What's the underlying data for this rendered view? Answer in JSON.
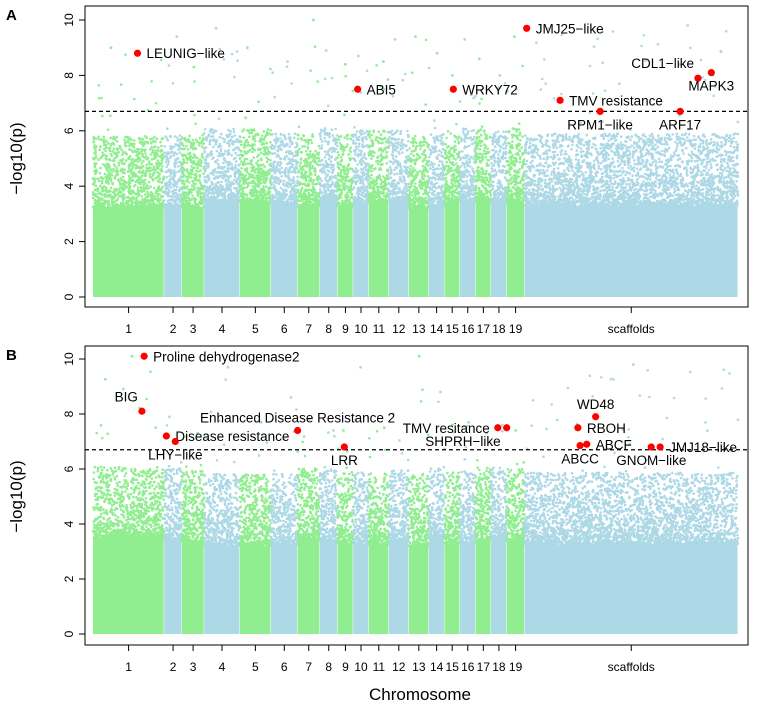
{
  "figure": {
    "x_title": "Chromosome",
    "colors": {
      "green": "#90ee90",
      "blue": "#add8e6",
      "hit": "#ff0000",
      "threshold": "#000000"
    }
  },
  "chart_data": [
    {
      "type": "scatter",
      "subtype": "manhattan",
      "panel": "A",
      "ylabel": "−log10(p)",
      "xlabel": "Chromosome",
      "ylim": [
        0,
        10
      ],
      "yticks": [
        "0",
        "2",
        "4",
        "6",
        "8",
        "10"
      ],
      "threshold": 6.7,
      "segments": [
        {
          "label": "1",
          "start": 0.0,
          "end": 1.6,
          "color": "green",
          "peak": 9.0
        },
        {
          "label": "2",
          "start": 1.6,
          "end": 2.0,
          "color": "blue",
          "peak": 9.4
        },
        {
          "label": "3",
          "start": 2.0,
          "end": 2.5,
          "color": "green",
          "peak": 8.3
        },
        {
          "label": "4",
          "start": 2.5,
          "end": 3.3,
          "color": "blue",
          "peak": 9.7
        },
        {
          "label": "5",
          "start": 3.3,
          "end": 4.0,
          "color": "green",
          "peak": 9.0
        },
        {
          "label": "6",
          "start": 4.0,
          "end": 4.6,
          "color": "blue",
          "peak": 8.5
        },
        {
          "label": "7",
          "start": 4.6,
          "end": 5.1,
          "color": "green",
          "peak": 10.0
        },
        {
          "label": "8",
          "start": 5.1,
          "end": 5.5,
          "color": "blue",
          "peak": 8.9
        },
        {
          "label": "9",
          "start": 5.5,
          "end": 5.85,
          "color": "green",
          "peak": 8.4
        },
        {
          "label": "10",
          "start": 5.85,
          "end": 6.2,
          "color": "blue",
          "peak": 8.7
        },
        {
          "label": "11",
          "start": 6.2,
          "end": 6.65,
          "color": "green",
          "peak": 8.5
        },
        {
          "label": "12",
          "start": 6.65,
          "end": 7.1,
          "color": "blue",
          "peak": 9.3
        },
        {
          "label": "13",
          "start": 7.1,
          "end": 7.55,
          "color": "green",
          "peak": 9.4
        },
        {
          "label": "14",
          "start": 7.55,
          "end": 7.9,
          "color": "blue",
          "peak": 8.8
        },
        {
          "label": "15",
          "start": 7.9,
          "end": 8.25,
          "color": "green",
          "peak": 8.0
        },
        {
          "label": "16",
          "start": 8.25,
          "end": 8.6,
          "color": "blue",
          "peak": 9.3
        },
        {
          "label": "17",
          "start": 8.6,
          "end": 8.95,
          "color": "green",
          "peak": 8.6
        },
        {
          "label": "18",
          "start": 8.95,
          "end": 9.3,
          "color": "blue",
          "peak": 8.0
        },
        {
          "label": "19",
          "start": 9.3,
          "end": 9.7,
          "color": "green",
          "peak": 9.4
        },
        {
          "label": "scaffolds",
          "start": 9.7,
          "end": 14.5,
          "color": "blue",
          "peak": 9.8
        }
      ],
      "hits": [
        {
          "gene": "LEUNIG−like",
          "x": 1.0,
          "y": 8.8,
          "label_side": "right"
        },
        {
          "gene": "ABI5",
          "x": 5.95,
          "y": 7.5,
          "label_side": "right"
        },
        {
          "gene": "WRKY72",
          "x": 8.1,
          "y": 7.5,
          "label_side": "right"
        },
        {
          "gene": "JMJ25−like",
          "x": 9.75,
          "y": 9.7,
          "label_side": "right"
        },
        {
          "gene": "TMV resistance",
          "x": 10.5,
          "y": 7.1,
          "label_side": "right"
        },
        {
          "gene": "RPM1−like",
          "x": 11.4,
          "y": 6.7,
          "label_side": "below"
        },
        {
          "gene": "CDL1−like",
          "x": 13.6,
          "y": 7.9,
          "label_side": "above-left"
        },
        {
          "gene": "MAPK3",
          "x": 13.9,
          "y": 8.1,
          "label_side": "below"
        },
        {
          "gene": "ARF17",
          "x": 13.2,
          "y": 6.7,
          "label_side": "below"
        }
      ]
    },
    {
      "type": "scatter",
      "subtype": "manhattan",
      "panel": "B",
      "ylabel": "−log10(p)",
      "xlabel": "Chromosome",
      "ylim": [
        0,
        10
      ],
      "yticks": [
        "0",
        "2",
        "4",
        "6",
        "8",
        "10"
      ],
      "threshold": 6.7,
      "segments": [
        {
          "label": "1",
          "start": 0.0,
          "end": 1.6,
          "color": "green",
          "peak": 10.1
        },
        {
          "label": "2",
          "start": 1.6,
          "end": 2.0,
          "color": "blue",
          "peak": 7.9
        },
        {
          "label": "3",
          "start": 2.0,
          "end": 2.5,
          "color": "green",
          "peak": 7.3
        },
        {
          "label": "4",
          "start": 2.5,
          "end": 3.3,
          "color": "blue",
          "peak": 9.7
        },
        {
          "label": "5",
          "start": 3.3,
          "end": 4.0,
          "color": "green",
          "peak": 7.7
        },
        {
          "label": "6",
          "start": 4.0,
          "end": 4.6,
          "color": "blue",
          "peak": 8.6
        },
        {
          "label": "7",
          "start": 4.6,
          "end": 5.1,
          "color": "green",
          "peak": 7.8
        },
        {
          "label": "8",
          "start": 5.1,
          "end": 5.5,
          "color": "blue",
          "peak": 7.4
        },
        {
          "label": "9",
          "start": 5.5,
          "end": 5.85,
          "color": "green",
          "peak": 7.4
        },
        {
          "label": "10",
          "start": 5.85,
          "end": 6.2,
          "color": "blue",
          "peak": 9.7
        },
        {
          "label": "11",
          "start": 6.2,
          "end": 6.65,
          "color": "green",
          "peak": 7.5
        },
        {
          "label": "12",
          "start": 6.65,
          "end": 7.1,
          "color": "blue",
          "peak": 8.0
        },
        {
          "label": "13",
          "start": 7.1,
          "end": 7.55,
          "color": "green",
          "peak": 10.1
        },
        {
          "label": "14",
          "start": 7.55,
          "end": 7.9,
          "color": "blue",
          "peak": 8.8
        },
        {
          "label": "15",
          "start": 7.9,
          "end": 8.25,
          "color": "green",
          "peak": 7.6
        },
        {
          "label": "16",
          "start": 8.25,
          "end": 8.6,
          "color": "blue",
          "peak": 7.7
        },
        {
          "label": "17",
          "start": 8.6,
          "end": 8.95,
          "color": "green",
          "peak": 7.3
        },
        {
          "label": "18",
          "start": 8.95,
          "end": 9.3,
          "color": "blue",
          "peak": 7.6
        },
        {
          "label": "19",
          "start": 9.3,
          "end": 9.7,
          "color": "green",
          "peak": 7.4
        },
        {
          "label": "scaffolds",
          "start": 9.7,
          "end": 14.5,
          "color": "blue",
          "peak": 9.8
        }
      ],
      "hits": [
        {
          "gene": "Proline dehydrogenase2",
          "x": 1.15,
          "y": 10.1,
          "label_side": "right"
        },
        {
          "gene": "BIG",
          "x": 1.1,
          "y": 8.1,
          "label_side": "above-left"
        },
        {
          "gene": "Enhanced Disease Resistance 2",
          "x": 4.6,
          "y": 7.4,
          "label_side": "above"
        },
        {
          "gene": "Disease resistance",
          "x": 1.65,
          "y": 7.2,
          "label_side": "right"
        },
        {
          "gene": "LHY−like",
          "x": 1.85,
          "y": 7.0,
          "label_side": "below"
        },
        {
          "gene": "LRR",
          "x": 5.65,
          "y": 6.8,
          "label_side": "below"
        },
        {
          "gene": "TMV resitance",
          "x": 9.1,
          "y": 7.5,
          "label_side": "left"
        },
        {
          "gene": "SHPRH−like",
          "x": 9.3,
          "y": 7.5,
          "label_side": "below-left"
        },
        {
          "gene": "WD48",
          "x": 11.3,
          "y": 7.9,
          "label_side": "above"
        },
        {
          "gene": "RBOH",
          "x": 10.9,
          "y": 7.5,
          "label_side": "right"
        },
        {
          "gene": "ABCF",
          "x": 11.1,
          "y": 6.9,
          "label_side": "right"
        },
        {
          "gene": "ABCC",
          "x": 10.95,
          "y": 6.85,
          "label_side": "below"
        },
        {
          "gene": "GNOM−like",
          "x": 12.55,
          "y": 6.8,
          "label_side": "below"
        },
        {
          "gene": "JMJ18−like",
          "x": 12.75,
          "y": 6.8,
          "label_side": "right"
        }
      ]
    }
  ]
}
